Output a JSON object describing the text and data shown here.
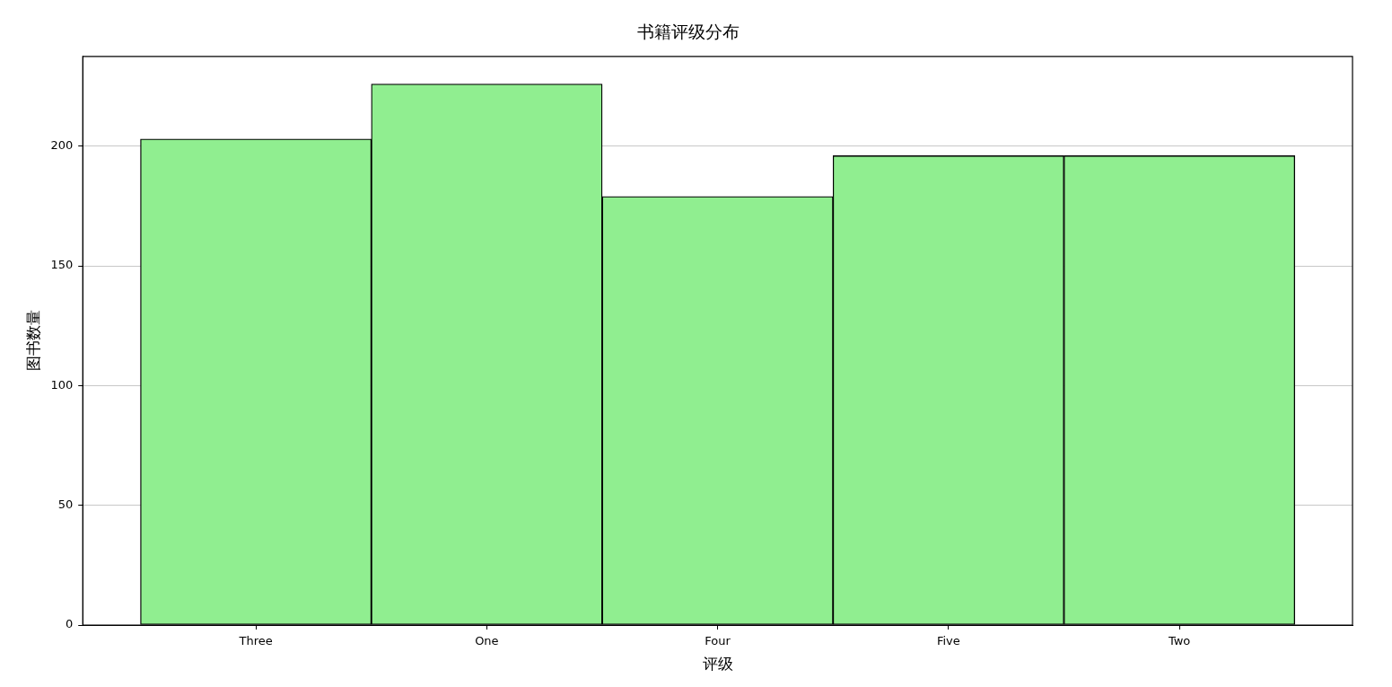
{
  "chart_data": {
    "type": "bar",
    "title": "书籍评级分布",
    "xlabel": "评级",
    "ylabel": "图书数量",
    "categories": [
      "Three",
      "One",
      "Four",
      "Five",
      "Two"
    ],
    "values": [
      203,
      226,
      179,
      196,
      196
    ],
    "color": "#90ee90",
    "ylim": [
      0,
      237.5
    ],
    "yticks": [
      0,
      50,
      100,
      150,
      200
    ],
    "grid": "y"
  }
}
